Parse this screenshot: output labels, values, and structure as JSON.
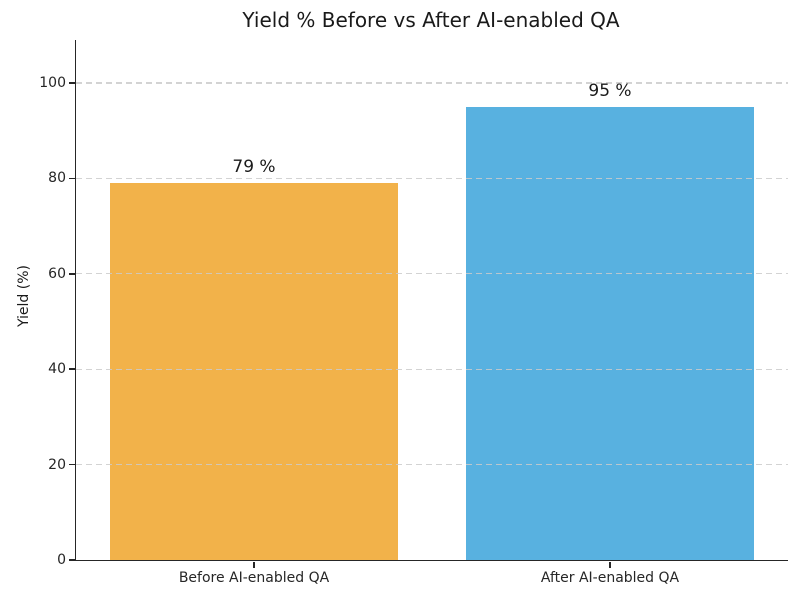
{
  "title": "Yield % Before vs After AI-enabled QA",
  "colors": {
    "before_bar": "#F2B24A",
    "after_bar": "#58B1E0",
    "gridline": "#CBCBCB",
    "axis": "#262626",
    "text": "#1A1A1A",
    "background": "#FFFFFF"
  },
  "chart_data": {
    "type": "bar",
    "title": "Yield % Before vs After AI-enabled QA",
    "categories": [
      "Before AI-enabled QA",
      "After AI-enabled QA"
    ],
    "values": [
      79,
      95
    ],
    "value_labels": [
      "79 %",
      "95 %"
    ],
    "bar_colors": [
      "#F2B24A",
      "#58B1E0"
    ],
    "xlabel": "",
    "ylabel": "Yield (%)",
    "ylim": [
      0,
      109
    ],
    "yticks": [
      0,
      20,
      40,
      60,
      80,
      100
    ],
    "grid": "horizontal-dashed",
    "grid_on": true,
    "legend_position": "none",
    "bar_width_fraction": 0.81
  }
}
